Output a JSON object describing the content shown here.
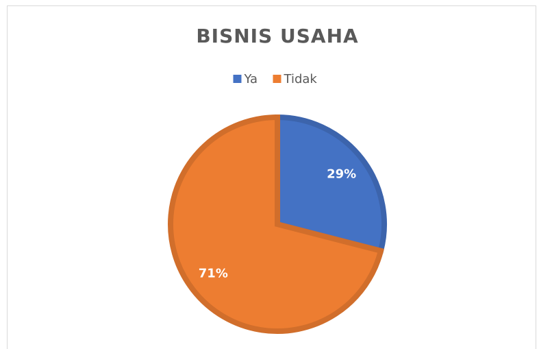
{
  "chart_data": {
    "type": "pie",
    "title": "BISNIS USAHA",
    "categories": [
      "Ya",
      "Tidak"
    ],
    "values": [
      29,
      71
    ],
    "value_labels": [
      "29%",
      "71%"
    ],
    "colors": [
      "#4472c4",
      "#ed7d31"
    ],
    "legend": "top"
  }
}
